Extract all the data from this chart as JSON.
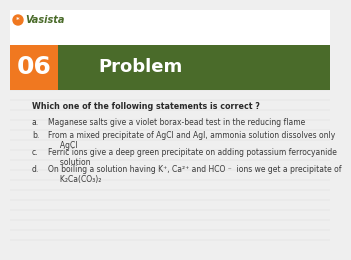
{
  "bg_color": "#efefef",
  "header_orange_color": "#f07820",
  "header_green_color": "#4a6b2a",
  "number": "06",
  "header_text": "Problem",
  "question": "Which one of the following statements is correct ?",
  "option_labels": [
    "a.",
    "b.",
    "c.",
    "d."
  ],
  "option_lines": [
    [
      "Maganese salts give a violet borax-bead test in the reducing flame"
    ],
    [
      "From a mixed precipitate of AgCl and AgI, ammonia solution dissolves only",
      "     AgCl"
    ],
    [
      "Ferric ions give a deep green precipitate on adding potassium ferrocyanide",
      "     solution"
    ],
    [
      "On boiling a solution having K⁺, Ca²⁺ and HCO ⁻  ions we get a precipitate of",
      "     K₂Ca(CO₃)₂"
    ]
  ],
  "white_color": "#ffffff",
  "text_color": "#2a2a2a",
  "option_text_color": "#3a3a3a",
  "logo_color": "#4a6b2a",
  "logo_orange": "#f07820"
}
